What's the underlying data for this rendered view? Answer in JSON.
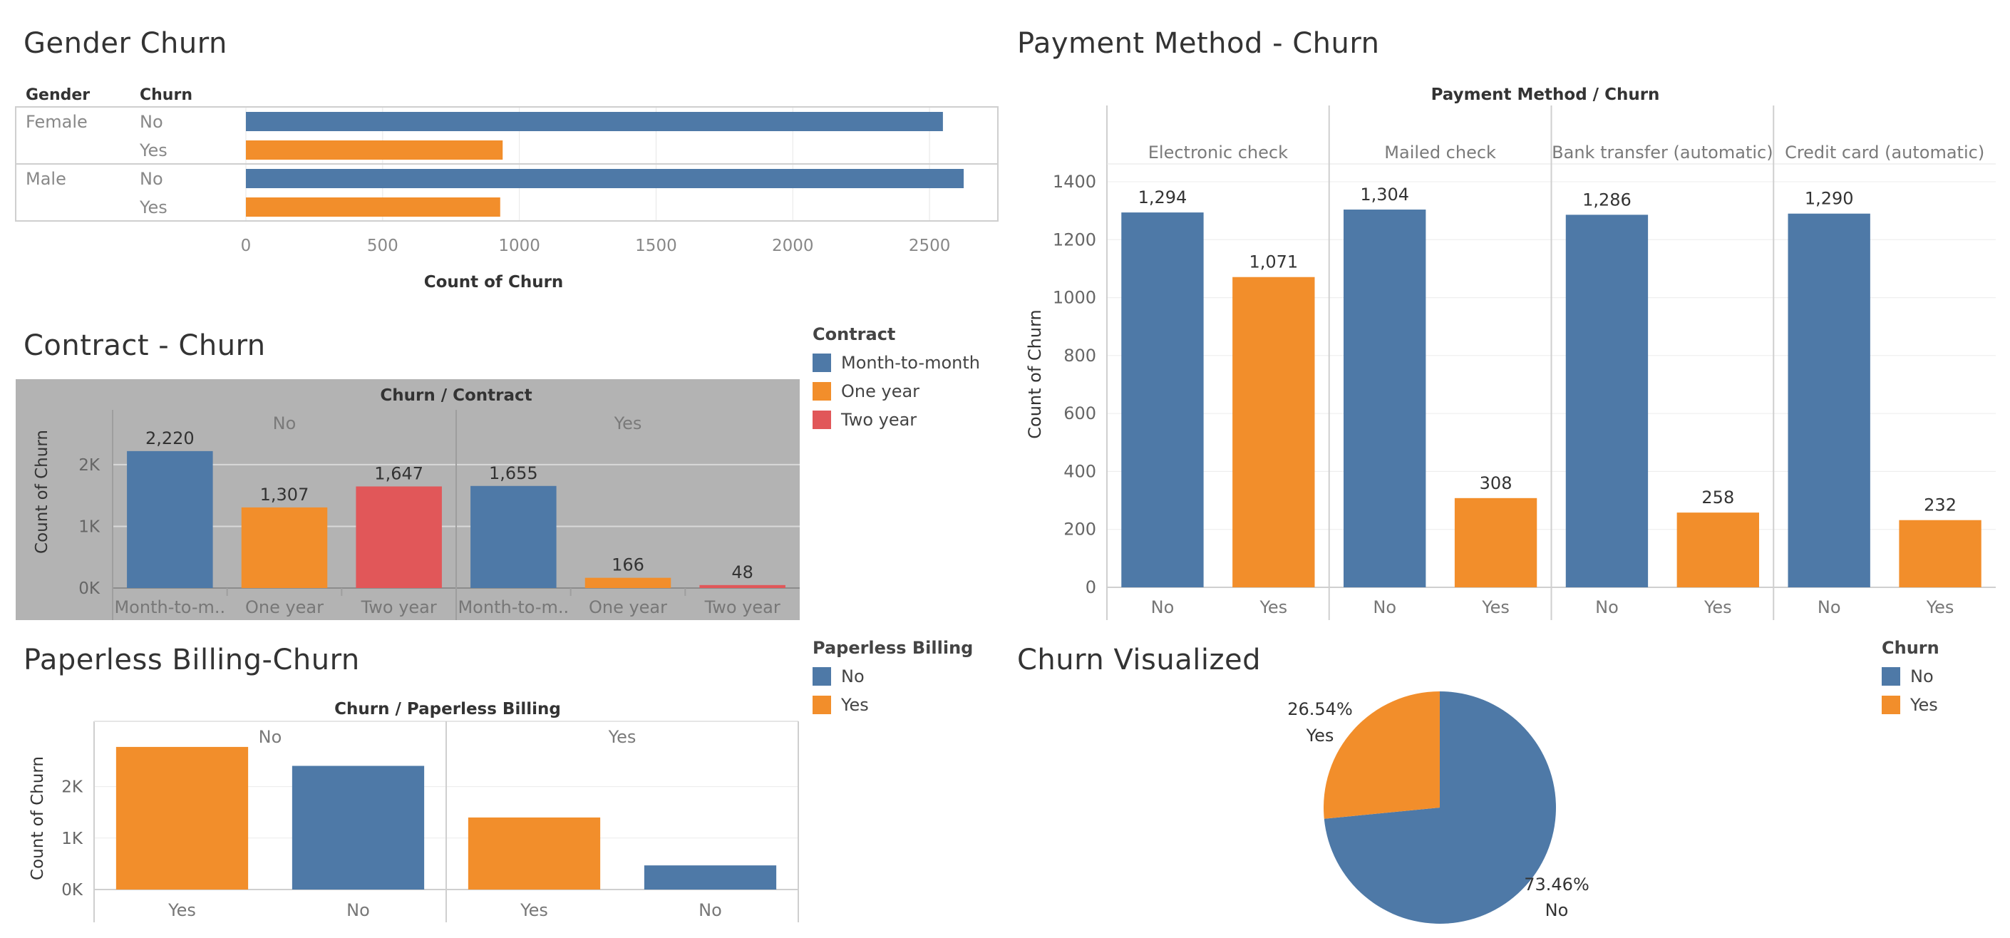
{
  "colors": {
    "no": "#4e79a7",
    "yes": "#f28e2b",
    "two_year": "#e15759",
    "grid": "#e6e6e6",
    "axis": "#cfcfcf",
    "label": "#888888",
    "dark": "#333333",
    "gray_bg": "#b3b3b3"
  },
  "gender": {
    "title": "Gender Churn",
    "col_gender": "Gender",
    "col_churn": "Churn",
    "xlabel": "Count of Churn",
    "chart_data": {
      "type": "bar",
      "orientation": "horizontal",
      "groups": [
        {
          "label": "Female",
          "rows": [
            {
              "churn": "No",
              "value": 2549
            },
            {
              "churn": "Yes",
              "value": 939
            }
          ]
        },
        {
          "label": "Male",
          "rows": [
            {
              "churn": "No",
              "value": 2625
            },
            {
              "churn": "Yes",
              "value": 930
            }
          ]
        }
      ],
      "xlim": [
        0,
        2750
      ],
      "ticks": [
        "0",
        "500",
        "1000",
        "1500",
        "2000",
        "2500"
      ]
    }
  },
  "contract": {
    "title": "Contract - Churn",
    "header": "Churn  /  Contract",
    "ylabel": "Count of Churn",
    "legend_title": "Contract",
    "legend": [
      "Month-to-month",
      "One year",
      "Two year"
    ],
    "chart_data": {
      "type": "bar",
      "panels": [
        {
          "label": "No",
          "categories": [
            "Month-to-m..",
            "One year",
            "Two year"
          ],
          "values": [
            2220,
            1307,
            1647
          ],
          "data_labels": [
            "2,220",
            "1,307",
            "1,647"
          ]
        },
        {
          "label": "Yes",
          "categories": [
            "Month-to-m..",
            "One year",
            "Two year"
          ],
          "values": [
            1655,
            166,
            48
          ],
          "data_labels": [
            "1,655",
            "166",
            "48"
          ]
        }
      ],
      "ylim": [
        0,
        2600
      ],
      "ticks": [
        "0K",
        "1K",
        "2K"
      ]
    }
  },
  "payment": {
    "title": "Payment Method - Churn",
    "header": "Payment Method  /  Churn",
    "ylabel": "Count of Churn",
    "chart_data": {
      "type": "bar",
      "panels": [
        {
          "label": "Electronic check",
          "categories": [
            "No",
            "Yes"
          ],
          "values": [
            1294,
            1071
          ],
          "data_labels": [
            "1,294",
            "1,071"
          ]
        },
        {
          "label": "Mailed check",
          "categories": [
            "No",
            "Yes"
          ],
          "values": [
            1304,
            308
          ],
          "data_labels": [
            "1,304",
            "308"
          ]
        },
        {
          "label": "Bank transfer (automatic)",
          "categories": [
            "No",
            "Yes"
          ],
          "values": [
            1286,
            258
          ],
          "data_labels": [
            "1,286",
            "258"
          ]
        },
        {
          "label": "Credit card (automatic)",
          "categories": [
            "No",
            "Yes"
          ],
          "values": [
            1290,
            232
          ],
          "data_labels": [
            "1,290",
            "232"
          ]
        }
      ],
      "ylim": [
        0,
        1500
      ],
      "ticks": [
        "0",
        "200",
        "400",
        "600",
        "800",
        "1000",
        "1200",
        "1400"
      ]
    }
  },
  "paperless": {
    "title": "Paperless Billing-Churn",
    "header": "Churn  /  Paperless Billing",
    "ylabel": "Count of Churn",
    "legend_title": "Paperless Billing",
    "legend": [
      "No",
      "Yes"
    ],
    "chart_data": {
      "type": "bar",
      "panels": [
        {
          "label": "No",
          "categories": [
            "Yes",
            "No"
          ],
          "values": [
            2771,
            2403
          ]
        },
        {
          "label": "Yes",
          "categories": [
            "Yes",
            "No"
          ],
          "values": [
            1400,
            469
          ]
        }
      ],
      "ylim": [
        0,
        2950
      ],
      "ticks": [
        "0K",
        "1K",
        "2K"
      ]
    }
  },
  "pie": {
    "title": "Churn Visualized",
    "legend_title": "Churn",
    "legend": [
      "No",
      "Yes"
    ],
    "chart_data": {
      "type": "pie",
      "slices": [
        {
          "label": "No",
          "value": 73.46,
          "pct_label": "73.46%"
        },
        {
          "label": "Yes",
          "value": 26.54,
          "pct_label": "26.54%"
        }
      ]
    }
  }
}
